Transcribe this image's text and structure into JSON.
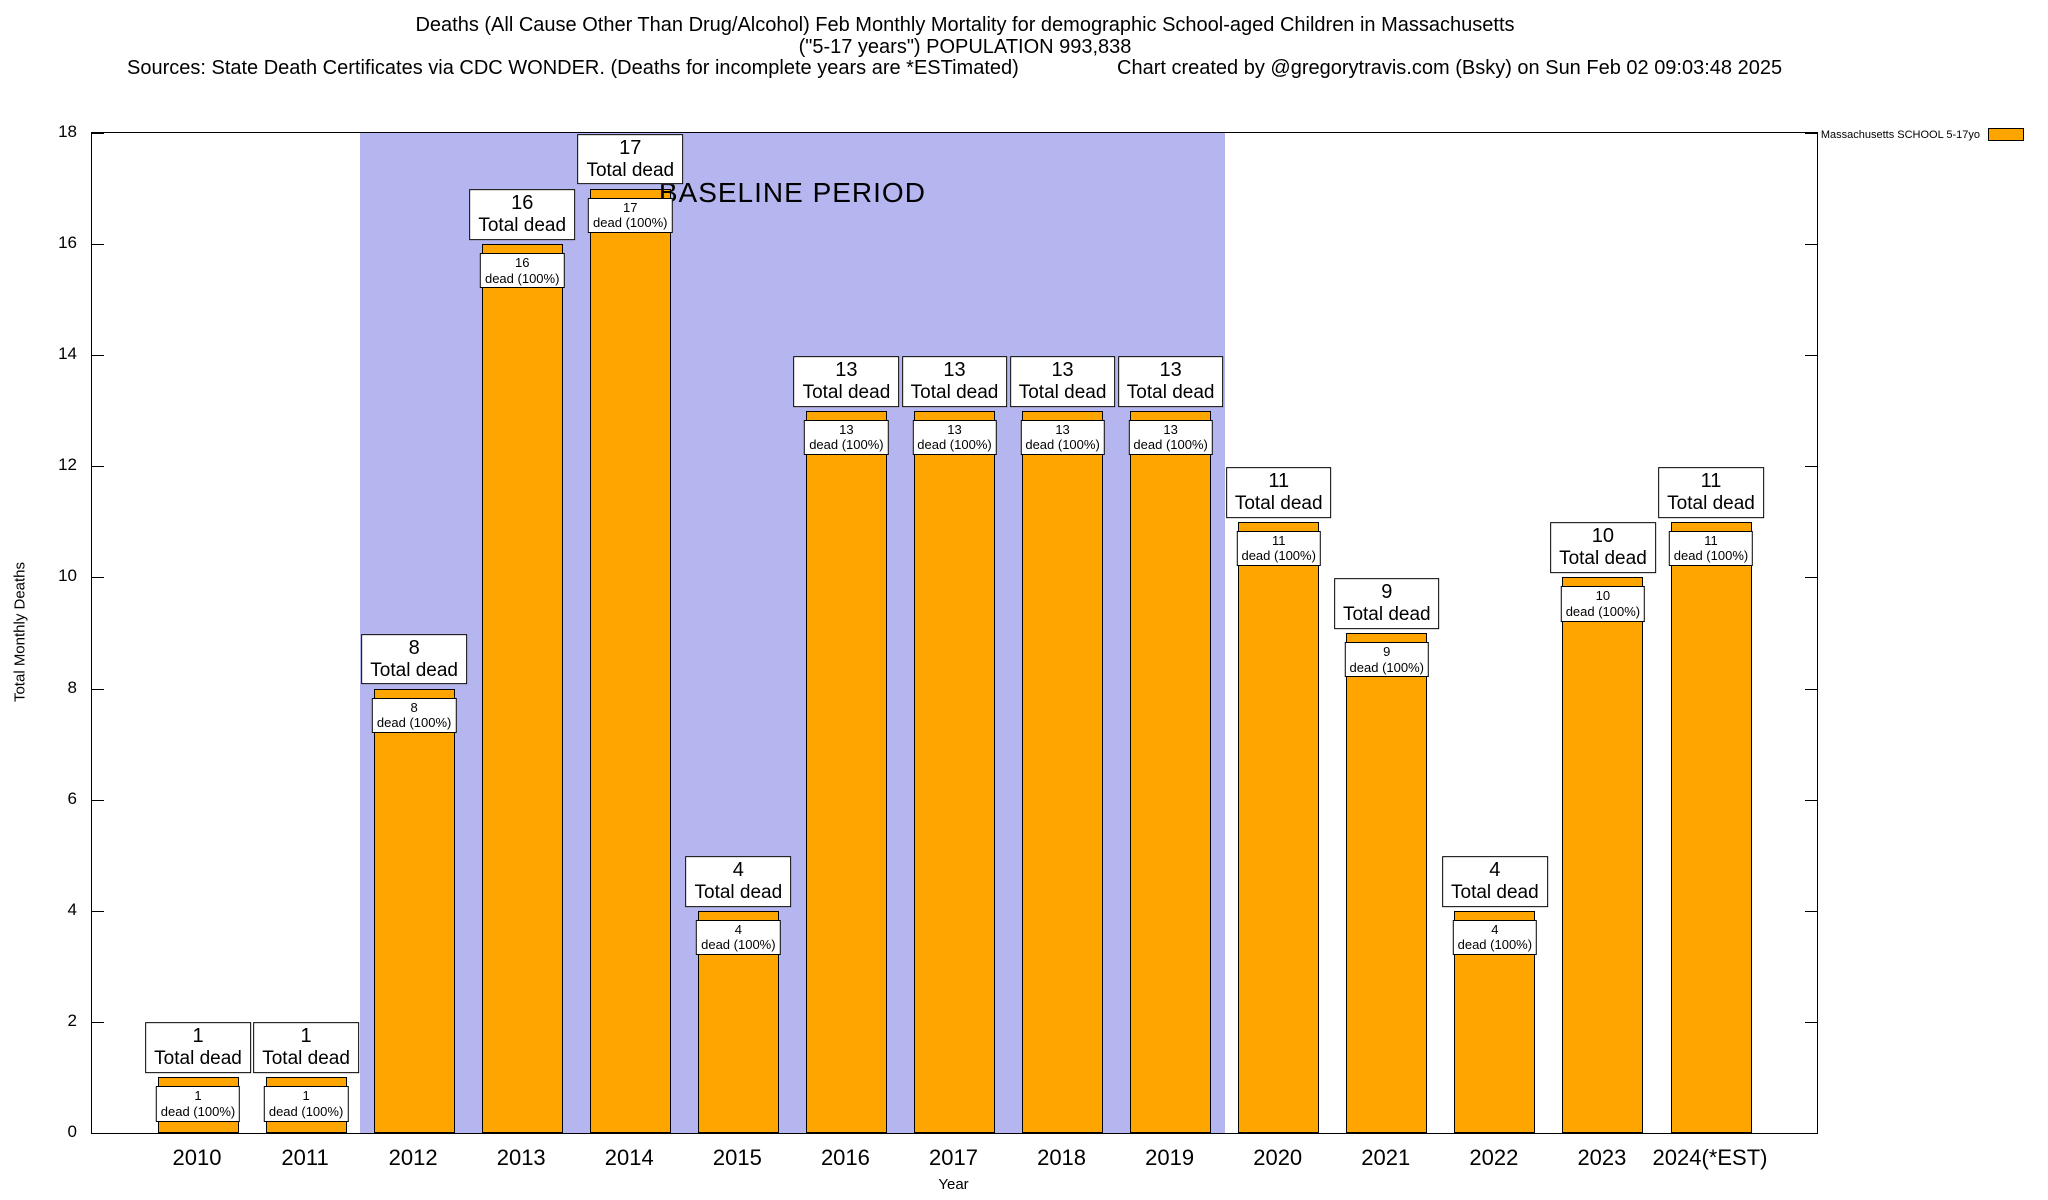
{
  "header": {
    "title_line1": "Deaths (All Cause Other Than Drug/Alcohol) Feb Monthly Mortality for demographic School-aged Children in Massachusetts",
    "title_line2": "(\"5-17 years\") POPULATION 993,838",
    "sources": "Sources: State Death Certificates via CDC WONDER. (Deaths for incomplete years are *ESTimated)",
    "credit": "Chart created by @gregorytravis.com (Bsky) on Sun Feb 02 09:03:48 2025"
  },
  "legend": {
    "label": "Massachusetts SCHOOL 5-17yo",
    "swatch_color": "#FFA500"
  },
  "chart_data": {
    "type": "bar",
    "title": "Deaths (All Cause Other Than Drug/Alcohol) Feb Monthly Mortality for demographic School-aged Children in Massachusetts",
    "subtitle": "(\"5-17 years\") POPULATION 993,838",
    "series_name": "Massachusetts SCHOOL 5-17yo",
    "categories": [
      "2010",
      "2011",
      "2012",
      "2013",
      "2014",
      "2015",
      "2016",
      "2017",
      "2018",
      "2019",
      "2020",
      "2021",
      "2022",
      "2023",
      "2024(*EST)"
    ],
    "values": [
      1,
      1,
      8,
      16,
      17,
      4,
      13,
      13,
      13,
      13,
      11,
      9,
      4,
      10,
      11
    ],
    "xlabel": "Year",
    "ylabel": "Total Monthly Deaths",
    "ylim": [
      0,
      18
    ],
    "yticks": [
      0,
      2,
      4,
      6,
      8,
      10,
      12,
      14,
      16,
      18
    ],
    "ytick_step": 2,
    "grid": false,
    "legend_position": "top-right-outside",
    "bar_color": "#FFA500",
    "bar_border_color": "#000000",
    "baseline": {
      "label": "BASELINE PERIOD",
      "start_category": "2012",
      "end_category": "2019",
      "color": "#B5B5EF"
    },
    "bar_top_label_suffix": "Total dead",
    "bar_inner_label_suffix": "dead (100%)"
  }
}
